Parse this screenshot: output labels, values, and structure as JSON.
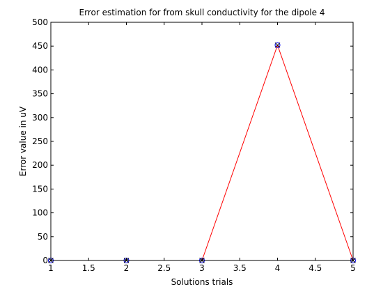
{
  "chart_data": {
    "type": "line",
    "title": "Error estimation for from skull conductivity for the dipole 4",
    "xlabel": "Solutions trials",
    "ylabel": "Error value in uV",
    "xlim": [
      1,
      5
    ],
    "ylim": [
      0,
      500
    ],
    "xticks": [
      1,
      1.5,
      2,
      2.5,
      3,
      3.5,
      4,
      4.5,
      5
    ],
    "xtick_labels": [
      "1",
      "1.5",
      "2",
      "2.5",
      "3",
      "3.5",
      "4",
      "4.5",
      "5"
    ],
    "yticks": [
      0,
      50,
      100,
      150,
      200,
      250,
      300,
      350,
      400,
      450,
      500
    ],
    "ytick_labels": [
      "0",
      "50",
      "100",
      "150",
      "200",
      "250",
      "300",
      "350",
      "400",
      "450",
      "500"
    ],
    "grid": false,
    "series": [
      {
        "x": [
          1,
          2,
          3,
          4,
          5
        ],
        "values": [
          0,
          0,
          0,
          452,
          0
        ],
        "line_color": "#ff0000",
        "marker_circle_color": "#0000ff",
        "marker_x_color": "#000000"
      }
    ]
  }
}
